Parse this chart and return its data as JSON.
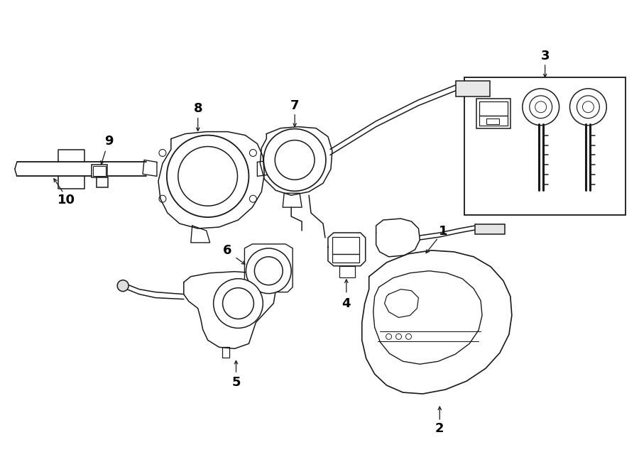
{
  "bg_color": "#ffffff",
  "line_color": "#1a1a1a",
  "fig_w": 9.0,
  "fig_h": 6.61,
  "dpi": 100,
  "lw": 1.1
}
